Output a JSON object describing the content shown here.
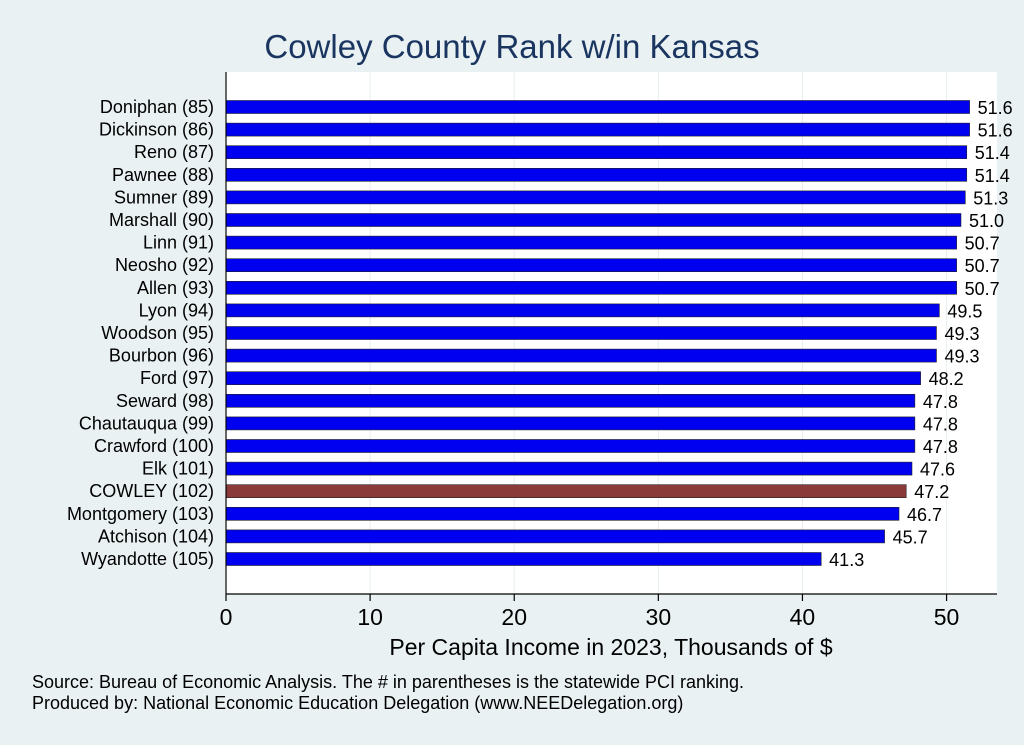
{
  "chart_data": {
    "type": "bar",
    "orientation": "horizontal",
    "title": "Cowley County Rank w/in Kansas",
    "xlabel": "Per Capita Income in 2023, Thousands of $",
    "ylabel": "",
    "xlim": [
      0,
      53.5
    ],
    "xticks": [
      0,
      10,
      20,
      30,
      40,
      50
    ],
    "grid": true,
    "categories": [
      "Doniphan (85)",
      "Dickinson (86)",
      "Reno (87)",
      "Pawnee (88)",
      "Sumner (89)",
      "Marshall (90)",
      "Linn (91)",
      "Neosho (92)",
      "Allen (93)",
      "Lyon (94)",
      "Woodson (95)",
      "Bourbon (96)",
      "Ford (97)",
      "Seward (98)",
      "Chautauqua (99)",
      "Crawford (100)",
      "Elk (101)",
      "COWLEY (102)",
      "Montgomery (103)",
      "Atchison (104)",
      "Wyandotte (105)"
    ],
    "values": [
      51.6,
      51.6,
      51.4,
      51.4,
      51.3,
      51.0,
      50.7,
      50.7,
      50.7,
      49.5,
      49.3,
      49.3,
      48.2,
      47.8,
      47.8,
      47.8,
      47.6,
      47.2,
      46.7,
      45.7,
      41.3
    ],
    "value_labels": [
      "51.6",
      "51.6",
      "51.4",
      "51.4",
      "51.3",
      "51.0",
      "50.7",
      "50.7",
      "50.7",
      "49.5",
      "49.3",
      "49.3",
      "48.2",
      "47.8",
      "47.8",
      "47.8",
      "47.6",
      "47.2",
      "46.7",
      "45.7",
      "41.3"
    ],
    "highlight": "COWLEY (102)",
    "colors": {
      "bar": "#0000f0",
      "highlight": "#8b3a3a",
      "grid": "#e6eef0",
      "axis": "#000000"
    }
  },
  "footer": {
    "source": "Source: Bureau of Economic Analysis. The # in parentheses is the statewide PCI ranking.",
    "produced_by": "Produced by: National Economic Education Delegation (www.NEEDelegation.org)"
  }
}
